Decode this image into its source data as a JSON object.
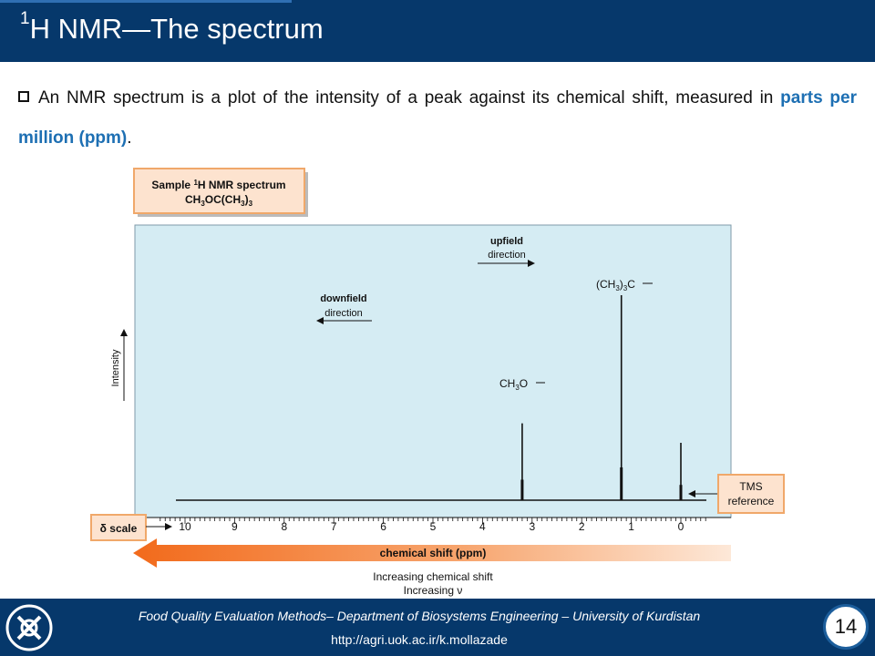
{
  "header": {
    "title_sup": "1",
    "title": "H NMR—The spectrum"
  },
  "body": {
    "text_before": "An NMR spectrum is a plot of the intensity of a peak against its chemical shift, measured in ",
    "highlight": "parts per million (ppm)",
    "text_after": "."
  },
  "chart_data": {
    "type": "line",
    "sample_box": {
      "line1_pre": "Sample ",
      "line1_sup": "1",
      "line1_post": "H NMR spectrum",
      "formula": "CH3OC(CH3)3"
    },
    "xlabel": "chemical shift (ppm)",
    "ylabel": "Intensity",
    "x_ticks": [
      10,
      9,
      8,
      7,
      6,
      5,
      4,
      3,
      2,
      1,
      0
    ],
    "xlim": [
      10.6,
      -0.5
    ],
    "x_reversed": true,
    "scale_label": "δ scale",
    "annotations": {
      "upfield_1": "upfield",
      "upfield_2": "direction",
      "downfield_1": "downfield",
      "downfield_2": "direction",
      "tms_1": "TMS",
      "tms_2": "reference",
      "increasing_1": "Increasing chemical shift",
      "increasing_2": "Increasing ν"
    },
    "peaks": [
      {
        "label": "CH3O—",
        "shift": 3.2,
        "relative_height": 0.375
      },
      {
        "label": "(CH3)3C—",
        "shift": 1.2,
        "relative_height": 1.0
      },
      {
        "label": "TMS",
        "shift": 0.0,
        "relative_height": 0.28
      }
    ],
    "colors": {
      "plot_background": "#d5ecf3",
      "label_box": "#fde3cf",
      "label_border": "#f0a86a",
      "arrow_orange": "#f26a1b"
    }
  },
  "footer": {
    "line1": "Food Quality Evaluation Methods– Department of Biosystems Engineering – University of Kurdistan",
    "line2": "http://agri.uok.ac.ir/k.mollazade",
    "page_number": "14"
  }
}
